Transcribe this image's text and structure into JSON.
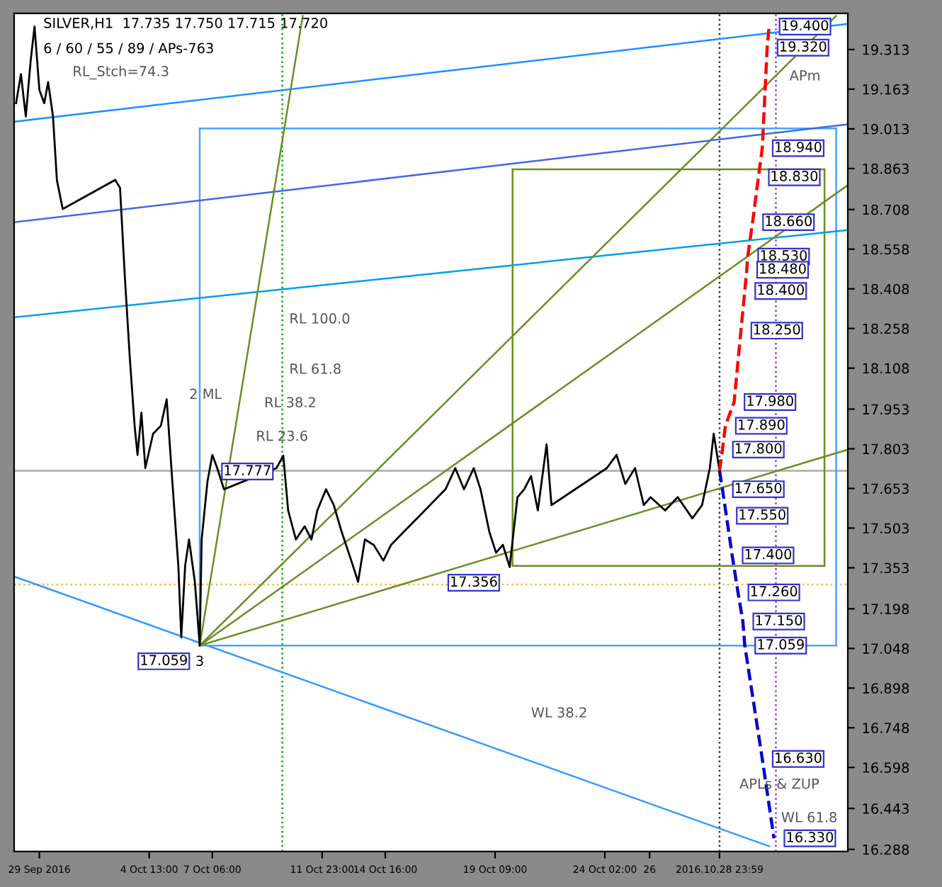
{
  "chart_data": {
    "type": "line",
    "title": "SILVER,H1  17.735 17.750 17.715 17.720",
    "subtitle": "6 / 60 / 55 / 89 / APs-763",
    "xlim": [
      "2016-09-28T18:00",
      "2016-11-03T12:00"
    ],
    "ylim": [
      16.28,
      19.45
    ],
    "xticks": [
      {
        "value": "2016-09-29T20:00",
        "label": "29 Sep 2016"
      },
      {
        "value": "2016-10-04T13:00",
        "label": "4 Oct 13:00"
      },
      {
        "value": "2016-10-07T06:00",
        "label": "7 Oct 06:00"
      },
      {
        "value": "2016-10-11T23:00",
        "label": "11 Oct 23:00"
      },
      {
        "value": "2016-10-14T16:00",
        "label": "14 Oct 16:00"
      },
      {
        "value": "2016-10-19T09:00",
        "label": "19 Oct 09:00"
      },
      {
        "value": "2016-10-24T02:00",
        "label": "24 Oct 02:00"
      },
      {
        "value": "2016-10-26",
        "label": "26"
      },
      {
        "value": "2016-10-28T23:59",
        "label": "2016.10.28 23:59"
      }
    ],
    "yticks": [
      16.288,
      16.443,
      16.598,
      16.748,
      16.898,
      17.048,
      17.198,
      17.353,
      17.503,
      17.653,
      17.803,
      17.953,
      18.108,
      18.258,
      18.408,
      18.558,
      18.708,
      18.863,
      19.013,
      19.163,
      19.313
    ],
    "grid": false,
    "series": [
      {
        "color": "#000000",
        "x": [
          "2016-09-28T20:00",
          "2016-09-29T01:00",
          "2016-09-29T06:00",
          "2016-09-29T11:00",
          "2016-09-29T15:00",
          "2016-09-29T20:00",
          "2016-09-30T01:00",
          "2016-09-30T05:00",
          "2016-09-30T10:00",
          "2016-09-30T14:00",
          "2016-09-30T20:00",
          "2016-10-03T02:00",
          "2016-10-03T07:00",
          "2016-10-03T12:00",
          "2016-10-03T17:00",
          "2016-10-03T22:00",
          "2016-10-04T01:00",
          "2016-10-04T05:00",
          "2016-10-04T09:00",
          "2016-10-04T17:00",
          "2016-10-05T01:00",
          "2016-10-05T07:00",
          "2016-10-05T13:00",
          "2016-10-05T19:00",
          "2016-10-05T22:00",
          "2016-10-06T02:00",
          "2016-10-06T06:00",
          "2016-10-06T12:00",
          "2016-10-06T17:00",
          "2016-10-06T19:00",
          "2016-10-07T01:00",
          "2016-10-07T06:00",
          "2016-10-07T11:00",
          "2016-10-07T18:00",
          "2016-10-10T00:00",
          "2016-10-10T07:00",
          "2016-10-10T12:00",
          "2016-10-10T20:00",
          "2016-10-11T05:00",
          "2016-10-11T12:00",
          "2016-10-11T18:00",
          "2016-10-12T03:00",
          "2016-10-12T11:00",
          "2016-10-12T19:00",
          "2016-10-13T05:00",
          "2016-10-13T12:00",
          "2016-10-13T19:00",
          "2016-10-14T04:00",
          "2016-10-14T14:00",
          "2016-10-14T22:00",
          "2016-10-17T06:00",
          "2016-10-17T16:00",
          "2016-10-18T01:00",
          "2016-10-18T11:00",
          "2016-10-18T18:00",
          "2016-10-19T03:00",
          "2016-10-19T10:00",
          "2016-10-19T17:00",
          "2016-10-20T00:00",
          "2016-10-20T08:00",
          "2016-10-20T15:00",
          "2016-10-20T22:00",
          "2016-10-21T05:00",
          "2016-10-21T14:00",
          "2016-10-21T19:00",
          "2016-10-24T04:00",
          "2016-10-24T14:00",
          "2016-10-24T23:00",
          "2016-10-25T09:00",
          "2016-10-25T18:00",
          "2016-10-26T01:00",
          "2016-10-26T16:00",
          "2016-10-27T05:00",
          "2016-10-27T20:00",
          "2016-10-28T06:00",
          "2016-10-28T14:00",
          "2016-10-28T18:00",
          "2016-10-28T23:59"
        ],
        "values": [
          19.11,
          19.22,
          19.06,
          19.27,
          19.4,
          19.16,
          19.11,
          19.19,
          19.06,
          18.82,
          18.71,
          18.82,
          18.79,
          18.45,
          18.15,
          17.89,
          17.78,
          17.94,
          17.73,
          17.86,
          17.89,
          17.99,
          17.67,
          17.36,
          17.09,
          17.36,
          17.46,
          17.3,
          17.059,
          17.46,
          17.68,
          17.78,
          17.73,
          17.65,
          17.73,
          17.777,
          17.57,
          17.46,
          17.51,
          17.46,
          17.57,
          17.65,
          17.59,
          17.49,
          17.38,
          17.3,
          17.46,
          17.44,
          17.38,
          17.44,
          17.65,
          17.73,
          17.65,
          17.73,
          17.65,
          17.49,
          17.41,
          17.44,
          17.356,
          17.62,
          17.65,
          17.7,
          17.57,
          17.82,
          17.59,
          17.73,
          17.78,
          17.67,
          17.73,
          17.59,
          17.62,
          17.57,
          17.62,
          17.54,
          17.59,
          17.73,
          17.86,
          17.72
        ]
      },
      {
        "color": "#ff0000",
        "line_style": "dashed",
        "x": [
          "2016-10-28T23:59",
          "2016-10-29T03:00",
          "2016-10-29T06:00",
          "2016-10-29T15:00",
          "2016-10-29T22:00",
          "2016-10-30T02:00",
          "2016-10-30T04:00",
          "2016-10-30T05:00",
          "2016-10-30T10:00",
          "2016-10-30T16:00",
          "2016-10-30T20:00",
          "2016-10-31T01:00",
          "2016-10-31T03:00"
        ],
        "values": [
          17.72,
          17.8,
          17.89,
          17.98,
          18.25,
          18.4,
          18.48,
          18.53,
          18.66,
          18.83,
          18.94,
          19.32,
          19.4
        ]
      },
      {
        "color": "#0000cc",
        "line_style": "dashed",
        "x": [
          "2016-10-28T23:59",
          "2016-10-29T03:00",
          "2016-10-29T07:00",
          "2016-10-29T13:00",
          "2016-10-29T19:00",
          "2016-10-30T00:00",
          "2016-10-30T02:00",
          "2016-10-30T20:00",
          "2016-10-31T08:00"
        ],
        "values": [
          17.72,
          17.65,
          17.55,
          17.4,
          17.26,
          17.15,
          17.059,
          16.63,
          16.33
        ]
      },
      {
        "color": "#3399ff",
        "x": [
          "2016-09-28T18:00",
          "2016-10-31T03:00"
        ],
        "values": [
          17.32,
          16.3
        ]
      },
      {
        "color": "#4aa3ff",
        "x": [
          "2016-10-06T17:00",
          "2016-11-03T00:00"
        ],
        "values": [
          17.059,
          17.059
        ]
      },
      {
        "color": "#4aa3ff",
        "x": [
          "2016-10-06T17:00",
          "2016-11-03T00:00"
        ],
        "values": [
          19.015,
          19.015
        ]
      },
      {
        "color": "#4aa3ff",
        "x": [
          "2016-10-06T17:00",
          "2016-10-06T17:01"
        ],
        "values": [
          17.059,
          19.015
        ]
      },
      {
        "color": "#4aa3ff",
        "x": [
          "2016-11-03T00:00",
          "2016-11-03T00:01"
        ],
        "values": [
          17.059,
          19.015
        ]
      },
      {
        "color": "#6b8e23",
        "x": [
          "2016-10-20T03:00",
          "2016-11-02T12:00"
        ],
        "values": [
          17.36,
          17.36
        ]
      },
      {
        "color": "#6b8e23",
        "x": [
          "2016-10-20T03:00",
          "2016-11-02T12:00"
        ],
        "values": [
          18.86,
          18.86
        ]
      },
      {
        "color": "#6b8e23",
        "x": [
          "2016-10-20T03:00",
          "2016-10-20T03:01"
        ],
        "values": [
          17.36,
          18.86
        ]
      },
      {
        "color": "#6b8e23",
        "x": [
          "2016-11-02T12:00",
          "2016-11-02T12:01"
        ],
        "values": [
          17.36,
          18.86
        ]
      },
      {
        "color": "#1e90ff",
        "x": [
          "2016-09-28T18:00",
          "2016-11-03T12:00"
        ],
        "values": [
          19.04,
          19.41
        ]
      },
      {
        "color": "#4169e1",
        "x": [
          "2016-09-28T18:00",
          "2016-11-03T12:00"
        ],
        "values": [
          18.66,
          19.03
        ]
      },
      {
        "color": "#00a0e0",
        "x": [
          "2016-09-28T18:00",
          "2016-11-03T12:00"
        ],
        "values": [
          18.3,
          18.63
        ]
      },
      {
        "color": "#6b8e23",
        "x": [
          "2016-10-06T17:00",
          "2016-10-11T03:00"
        ],
        "values": [
          17.059,
          19.44
        ]
      },
      {
        "color": "#6b8e23",
        "x": [
          "2016-10-06T17:00",
          "2016-11-03T12:00"
        ],
        "values": [
          17.059,
          17.8
        ]
      },
      {
        "color": "#6b8e23",
        "x": [
          "2016-10-06T17:00",
          "2016-11-03T12:00"
        ],
        "values": [
          17.059,
          18.8
        ]
      },
      {
        "color": "#6b8e23",
        "x": [
          "2016-10-06T17:00",
          "2016-11-03T00:00"
        ],
        "values": [
          17.059,
          19.44
        ]
      }
    ],
    "ref_lines": [
      {
        "axis": "x",
        "value": "2016-10-28T23:59",
        "color": "#333333",
        "line_style": "dotted"
      },
      {
        "axis": "x",
        "value": "2016-10-31T10:00",
        "color": "#9932cc",
        "line_style": "dotted"
      },
      {
        "axis": "x",
        "value": "2016-10-10T06:00",
        "color": "#00aa00",
        "line_style": "dotted"
      },
      {
        "axis": "y",
        "value": 17.72,
        "color": "#aaaaaa",
        "line_style": "solid"
      },
      {
        "axis": "y",
        "value": 17.29,
        "color": "#ffb347",
        "line_style": "dotted"
      }
    ],
    "annotations": [
      {
        "text": "19.400",
        "x": "2016-10-31T03:00",
        "y": 19.4
      },
      {
        "text": "19.320",
        "x": "2016-10-31T01:00",
        "y": 19.32
      },
      {
        "text": "18.940",
        "x": "2016-10-30T20:00",
        "y": 18.94
      },
      {
        "text": "18.830",
        "x": "2016-10-30T16:00",
        "y": 18.83
      },
      {
        "text": "18.660",
        "x": "2016-10-30T10:00",
        "y": 18.66
      },
      {
        "text": "18.530",
        "x": "2016-10-30T05:00",
        "y": 18.53
      },
      {
        "text": "18.480",
        "x": "2016-10-30T04:00",
        "y": 18.48
      },
      {
        "text": "18.400",
        "x": "2016-10-30T02:00",
        "y": 18.4
      },
      {
        "text": "18.250",
        "x": "2016-10-29T22:00",
        "y": 18.25
      },
      {
        "text": "17.980",
        "x": "2016-10-29T15:00",
        "y": 17.98
      },
      {
        "text": "17.890",
        "x": "2016-10-29T06:00",
        "y": 17.89
      },
      {
        "text": "17.800",
        "x": "2016-10-29T03:00",
        "y": 17.8
      },
      {
        "text": "17.650",
        "x": "2016-10-29T03:00",
        "y": 17.65
      },
      {
        "text": "17.550",
        "x": "2016-10-29T07:00",
        "y": 17.55
      },
      {
        "text": "17.400",
        "x": "2016-10-29T13:00",
        "y": 17.4
      },
      {
        "text": "17.260",
        "x": "2016-10-29T19:00",
        "y": 17.26
      },
      {
        "text": "17.150",
        "x": "2016-10-30T00:00",
        "y": 17.15
      },
      {
        "text": "17.059",
        "x": "2016-10-30T02:00",
        "y": 17.059
      },
      {
        "text": "16.630",
        "x": "2016-10-30T20:00",
        "y": 16.63
      },
      {
        "text": "16.330",
        "x": "2016-10-31T08:00",
        "y": 16.33
      },
      {
        "text": "17.777",
        "x": "2016-10-10T07:00",
        "y": 17.777
      },
      {
        "text": "17.059",
        "x": "2016-10-06T17:00",
        "y": 17.059
      },
      {
        "text": "17.356",
        "x": "2016-10-20T00:00",
        "y": 17.356
      },
      {
        "text": "3",
        "x": "2016-10-06T17:00",
        "y": 17.059
      },
      "RL_Stch=74.3",
      "APm",
      "APLs & ZUP",
      "2 ML",
      "WL 38.2",
      "WL 61.8",
      "RL 100.0",
      "RL 61.8",
      "RL 38.2",
      "RL 23.6"
    ]
  }
}
